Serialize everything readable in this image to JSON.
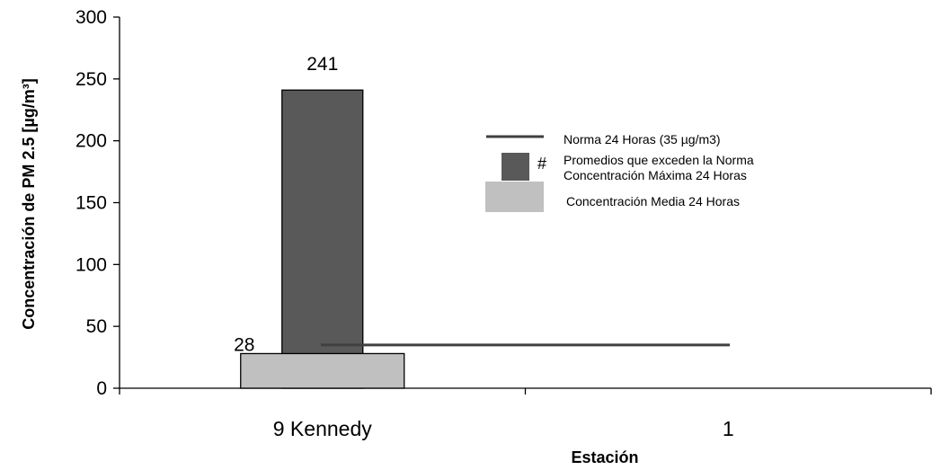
{
  "chart_data": {
    "type": "bar",
    "title": "",
    "xlabel": "Estación",
    "ylabel": "Concentración de PM 2.5 [µg/m³]",
    "ylim": [
      0,
      300
    ],
    "yticks": [
      0,
      50,
      100,
      150,
      200,
      250,
      300
    ],
    "categories": [
      "9 Kennedy",
      "1"
    ],
    "series": [
      {
        "name": "Concentración Media 24 Horas",
        "values": [
          28,
          null
        ],
        "color": "#c0c0c0"
      },
      {
        "name": "Concentración Máxima 24 Horas",
        "values": [
          241,
          null
        ],
        "color": "#595959"
      }
    ],
    "data_labels": {
      "mean": "28",
      "max": "241"
    },
    "reference_line": {
      "name": "Norma 24 Horas (35 µg/m3)",
      "value": 35,
      "color": "#404040"
    },
    "exceed_marker": {
      "symbol": "#",
      "label": "Promedios que exceden la Norma"
    },
    "legend_position": "right",
    "grid": false
  }
}
